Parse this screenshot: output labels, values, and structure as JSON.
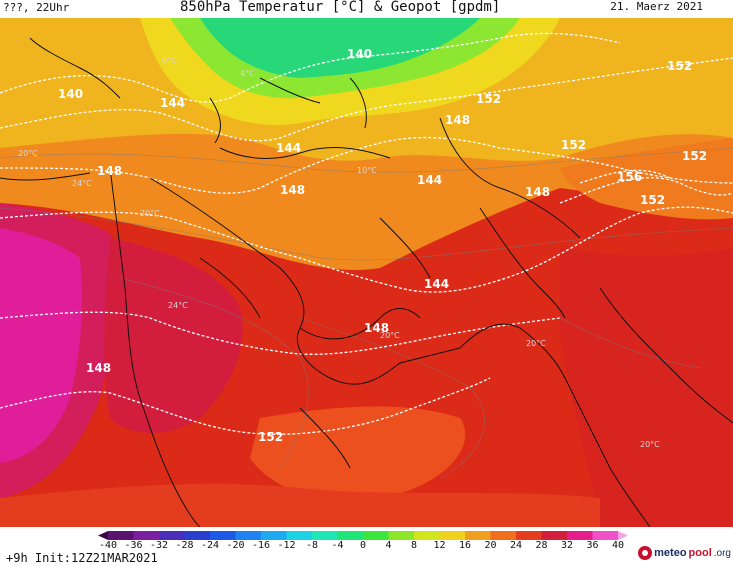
{
  "header": {
    "left": "???, 22Uhr",
    "title": "850hPa Temperatur [°C] & Geopot [gpdm]",
    "date": "21. Maerz 2021"
  },
  "footer": {
    "init": "+9h  Init:12Z21MAR2021"
  },
  "logo": {
    "text_meteo": "meteo",
    "text_pool": "pool",
    "text_org": ".org"
  },
  "colorbar": {
    "ticks": [
      "-40",
      "-36",
      "-32",
      "-28",
      "-24",
      "-20",
      "-16",
      "-12",
      "-8",
      "-4",
      "0",
      "4",
      "8",
      "12",
      "16",
      "20",
      "24",
      "28",
      "32",
      "36",
      "40"
    ],
    "colors": [
      "#3b0a45",
      "#5a1470",
      "#7a1fa0",
      "#4a2db8",
      "#2a3fd0",
      "#1e5ae6",
      "#1e82f0",
      "#1eaaf0",
      "#1ed2e6",
      "#1ee6b4",
      "#1ee678",
      "#3ce63c",
      "#8ce628",
      "#d2e61e",
      "#f0d21e",
      "#f0a01e",
      "#f06e1e",
      "#e63c1e",
      "#d21e3c",
      "#e61e8c",
      "#f050c8",
      "#f8a0e6"
    ]
  },
  "geopot_labels": [
    {
      "text": "140"
    },
    {
      "text": "140"
    },
    {
      "text": "144"
    },
    {
      "text": "148"
    },
    {
      "text": "144"
    },
    {
      "text": "148"
    },
    {
      "text": "148"
    },
    {
      "text": "144"
    },
    {
      "text": "144"
    },
    {
      "text": "148"
    },
    {
      "text": "152"
    },
    {
      "text": "152"
    },
    {
      "text": "152"
    },
    {
      "text": "156"
    },
    {
      "text": "152"
    },
    {
      "text": "148"
    },
    {
      "text": "148"
    },
    {
      "text": "152"
    },
    {
      "text": "152"
    }
  ],
  "temp_labels": [
    "0°C",
    "4°C",
    "20°C",
    "24°C",
    "20°C",
    "24°C",
    "20°C",
    "10°C",
    "20°C",
    "20°C"
  ]
}
